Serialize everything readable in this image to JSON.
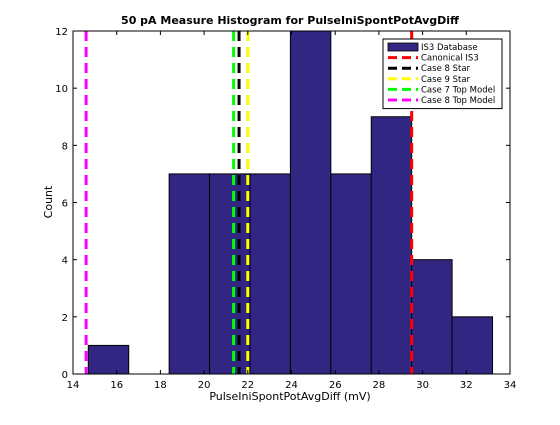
{
  "chart_data": {
    "type": "bar",
    "title": "50 pA Measure Histogram for PulseIniSpontPotAvgDiff",
    "xlabel": "PulseIniSpontPotAvgDiff (mV)",
    "ylabel": "Count",
    "xlim": [
      14,
      34
    ],
    "ylim": [
      0,
      12
    ],
    "xticks": [
      14,
      16,
      18,
      20,
      22,
      24,
      26,
      28,
      30,
      32,
      34
    ],
    "yticks": [
      0,
      2,
      4,
      6,
      8,
      10,
      12
    ],
    "bin_edges": [
      14.7,
      16.55,
      18.4,
      20.25,
      22.1,
      23.95,
      25.8,
      27.65,
      29.5,
      31.35,
      33.2
    ],
    "counts": [
      1,
      0,
      7,
      7,
      7,
      12,
      7,
      9,
      4,
      2
    ],
    "bar_color": "#312783",
    "legend_position": "top-right",
    "legend": [
      {
        "label": "IS3 Database",
        "kind": "patch",
        "color": "#312783"
      },
      {
        "label": "Canonical IS3",
        "kind": "line",
        "color": "#ff0000"
      },
      {
        "label": "Case 8 Star",
        "kind": "line",
        "color": "#000000"
      },
      {
        "label": "Case 9 Star",
        "kind": "line",
        "color": "#ffff00"
      },
      {
        "label": "Case 7 Top Model",
        "kind": "line",
        "color": "#00ff00"
      },
      {
        "label": "Case 8 Top Model",
        "kind": "line",
        "color": "#ff00ff"
      }
    ],
    "reference_lines": [
      {
        "label": "Canonical IS3",
        "x": 29.5,
        "color": "#ff0000"
      },
      {
        "label": "Case 8 Star",
        "x": 21.6,
        "color": "#000000"
      },
      {
        "label": "Case 9 Star",
        "x": 22.0,
        "color": "#ffff00"
      },
      {
        "label": "Case 7 Top Model",
        "x": 21.35,
        "color": "#00ff00"
      },
      {
        "label": "Case 8 Top Model",
        "x": 14.6,
        "color": "#ff00ff"
      }
    ]
  }
}
